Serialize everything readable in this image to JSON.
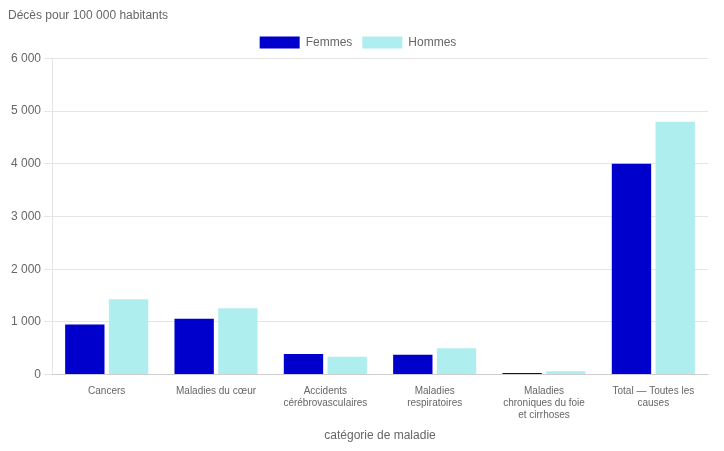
{
  "chart_data": {
    "type": "bar",
    "ylabel": "Décès pour 100 000 habitants",
    "xlabel": "catégorie de maladie",
    "categories": [
      "Cancers",
      "Maladies du cœur",
      "Accidents\ncérébrovasculaires",
      "Maladies\nrespiratoires",
      "Maladies\nchroniques du foie\net cirrhoses",
      "Total — Toutes les\ncauses"
    ],
    "series": [
      {
        "name": "Femmes",
        "color": "#0000CD",
        "values": [
          950,
          1060,
          390,
          375,
          30,
          4000
        ]
      },
      {
        "name": "Hommes",
        "color": "#AFEEEE",
        "values": [
          1430,
          1260,
          340,
          500,
          65,
          4800
        ]
      }
    ],
    "ylim": [
      0,
      6000
    ],
    "yticks": [
      0,
      {
        "value": 1000,
        "label": "1 000"
      },
      {
        "value": 2000,
        "label": "2 000"
      },
      {
        "value": 3000,
        "label": "3 000"
      },
      {
        "value": 4000,
        "label": "4 000"
      },
      {
        "value": 5000,
        "label": "5 000"
      },
      {
        "value": 6000,
        "label": "6 000"
      }
    ],
    "grid": true,
    "legend": "top"
  }
}
